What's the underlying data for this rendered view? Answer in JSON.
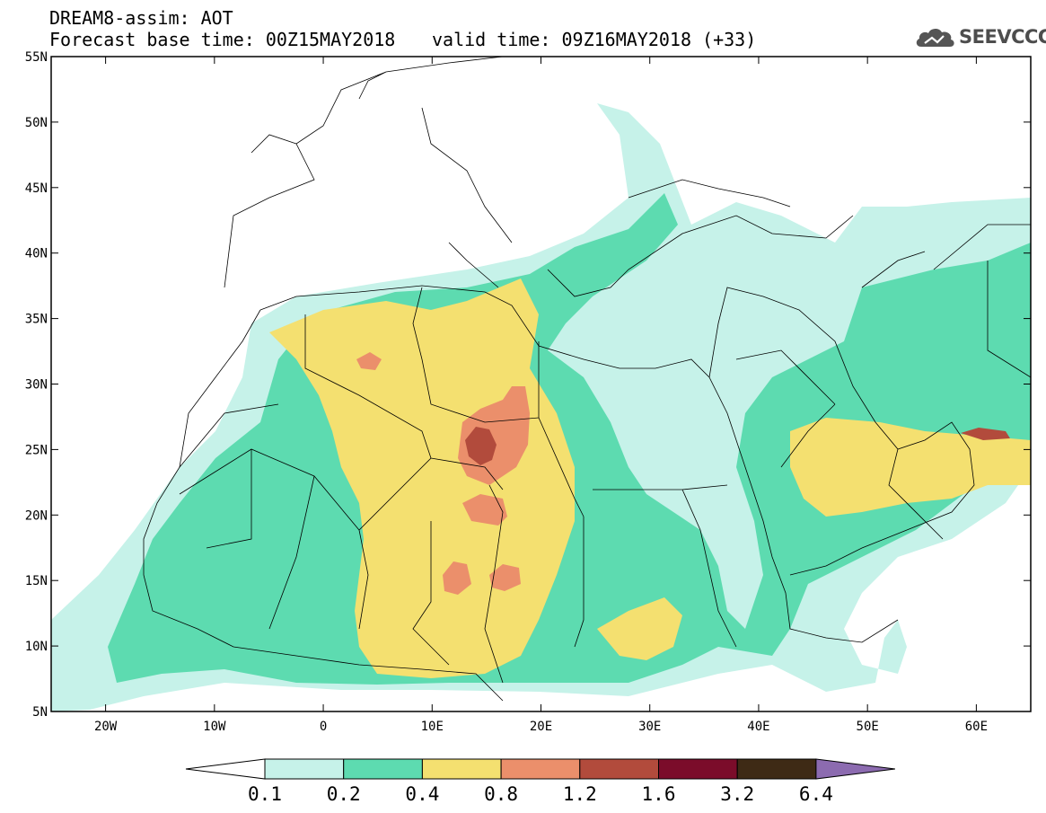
{
  "header": {
    "title_line1": "DREAM8-assim: AOT",
    "base_time_text": "Forecast base time: 00Z15MAY2018",
    "valid_time_text": "valid time: 09Z16MAY2018 (+33)"
  },
  "logo": {
    "text": "SEEVCCC",
    "icon": "cloud-icon"
  },
  "map": {
    "projection": "equirectangular",
    "lon_range": [
      -25,
      65
    ],
    "lat_range": [
      5,
      55
    ],
    "lon_ticks": [
      {
        "value": -20,
        "label": "20W"
      },
      {
        "value": -10,
        "label": "10W"
      },
      {
        "value": 0,
        "label": "0"
      },
      {
        "value": 10,
        "label": "10E"
      },
      {
        "value": 20,
        "label": "20E"
      },
      {
        "value": 30,
        "label": "30E"
      },
      {
        "value": 40,
        "label": "40E"
      },
      {
        "value": 50,
        "label": "50E"
      },
      {
        "value": 60,
        "label": "60E"
      }
    ],
    "lat_ticks": [
      {
        "value": 55,
        "label": "55N"
      },
      {
        "value": 50,
        "label": "50N"
      },
      {
        "value": 45,
        "label": "45N"
      },
      {
        "value": 40,
        "label": "40N"
      },
      {
        "value": 35,
        "label": "35N"
      },
      {
        "value": 30,
        "label": "30N"
      },
      {
        "value": 25,
        "label": "25N"
      },
      {
        "value": 20,
        "label": "20N"
      },
      {
        "value": 15,
        "label": "15N"
      },
      {
        "value": 10,
        "label": "10N"
      },
      {
        "value": 5,
        "label": "5N"
      }
    ]
  },
  "colorbar": {
    "colors": {
      "below": "#ffffff",
      "c1": "#c6f2e9",
      "c2": "#5ddbb0",
      "c3": "#f4e070",
      "c4": "#eb8f6b",
      "c5": "#b24b3c",
      "c6": "#7b0c2a",
      "c7": "#3e2a15",
      "above": "#8c6bb0"
    },
    "labels": [
      "0.1",
      "0.2",
      "0.4",
      "0.8",
      "1.2",
      "1.6",
      "3.2",
      "6.4"
    ]
  }
}
